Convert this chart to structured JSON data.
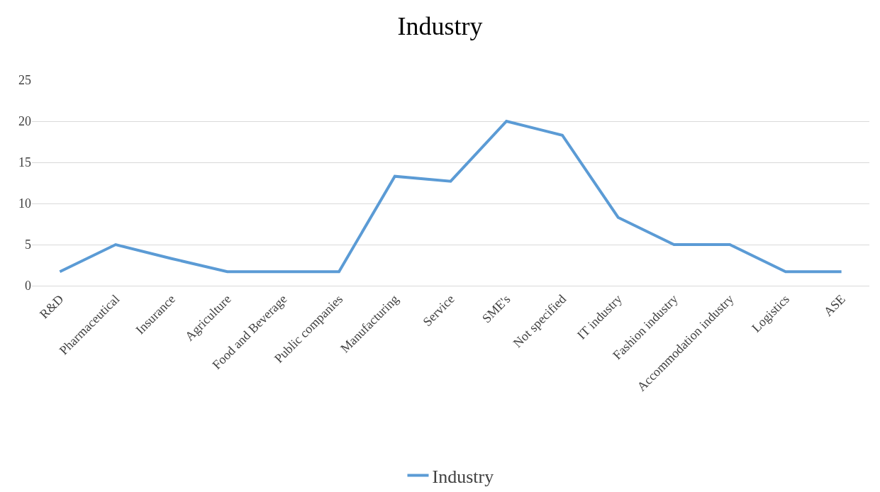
{
  "chart_data": {
    "type": "line",
    "title": "Industry",
    "categories": [
      "R&D",
      "Pharmaceutical",
      "Insurance",
      "Agriculture",
      "Food and Beverage",
      "Public companies",
      "Manufacturing",
      "Service",
      "SME's",
      "Not specified",
      "IT industry",
      "Fashion industry",
      "Accommodation industry",
      "Logistics",
      "ASE"
    ],
    "series": [
      {
        "name": "Industry",
        "color": "#5b9bd5",
        "values": [
          1.7,
          5,
          3.3,
          1.7,
          1.7,
          1.7,
          13.3,
          12.7,
          20,
          18.3,
          8.3,
          5,
          5,
          1.7,
          1.7
        ]
      }
    ],
    "ylim": [
      0,
      25
    ],
    "yticks": [
      0,
      5,
      10,
      15,
      20,
      25
    ],
    "grid": "y",
    "legend": "bottom",
    "marker": "none",
    "line_style": "solid"
  }
}
